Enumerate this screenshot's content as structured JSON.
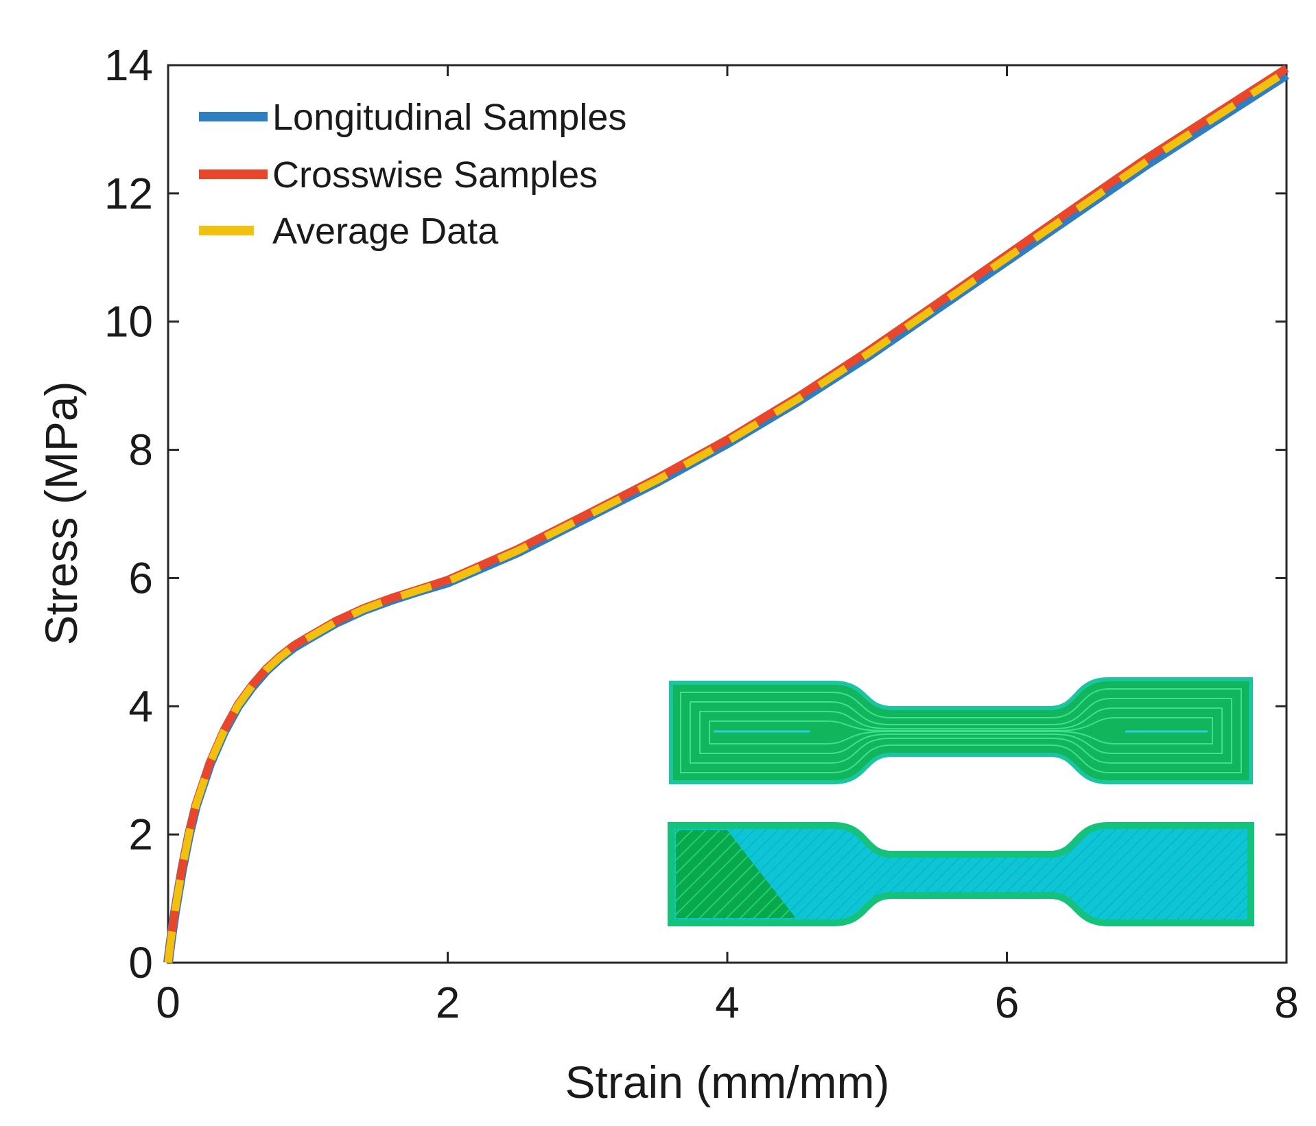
{
  "chart_data": {
    "type": "line",
    "xlabel": "Strain (mm/mm)",
    "ylabel": "Stress (MPa)",
    "xlim": [
      0,
      8
    ],
    "ylim": [
      0,
      14
    ],
    "xticks": [
      "0",
      "2",
      "4",
      "6",
      "8"
    ],
    "yticks": [
      "0",
      "2",
      "4",
      "6",
      "8",
      "10",
      "12",
      "14"
    ],
    "legend_position": "top-left",
    "grid": false,
    "x": [
      0,
      0.02,
      0.05,
      0.1,
      0.15,
      0.2,
      0.3,
      0.4,
      0.5,
      0.6,
      0.7,
      0.8,
      0.9,
      1.0,
      1.2,
      1.4,
      1.6,
      1.8,
      2.0,
      2.5,
      3.0,
      3.5,
      4.0,
      4.5,
      5.0,
      5.5,
      6.0,
      6.5,
      7.0,
      7.5,
      8.0
    ],
    "series": [
      {
        "name": "Longitudinal Samples",
        "color": "#2e7ec1",
        "dash": "solid",
        "values": [
          0,
          0.35,
          0.8,
          1.45,
          2.0,
          2.45,
          3.1,
          3.6,
          4.0,
          4.3,
          4.55,
          4.75,
          4.92,
          5.05,
          5.3,
          5.5,
          5.66,
          5.8,
          5.93,
          6.4,
          6.95,
          7.5,
          8.1,
          8.75,
          9.45,
          10.2,
          10.95,
          11.7,
          12.45,
          13.15,
          13.85
        ]
      },
      {
        "name": "Crosswise Samples",
        "color": "#e8472b",
        "dash": "solid",
        "values": [
          0,
          0.37,
          0.83,
          1.48,
          2.03,
          2.48,
          3.13,
          3.63,
          4.03,
          4.33,
          4.58,
          4.78,
          4.95,
          5.08,
          5.33,
          5.53,
          5.69,
          5.83,
          5.97,
          6.45,
          7.0,
          7.56,
          8.16,
          8.82,
          9.53,
          10.28,
          11.04,
          11.8,
          12.55,
          13.25,
          13.95
        ]
      },
      {
        "name": "Average Data",
        "color": "#f2c110",
        "dash": "dashed",
        "values": [
          0,
          0.36,
          0.815,
          1.465,
          2.015,
          2.465,
          3.115,
          3.615,
          4.015,
          4.315,
          4.565,
          4.765,
          4.935,
          5.065,
          5.315,
          5.515,
          5.675,
          5.815,
          5.95,
          6.425,
          6.975,
          7.53,
          8.13,
          8.785,
          9.49,
          10.24,
          10.995,
          11.75,
          12.5,
          13.2,
          13.9
        ]
      }
    ]
  },
  "inset": {
    "description_icon": "dogbone-specimens-icon",
    "colors": {
      "outline_green": "#16c46a",
      "line_green": "#0aa85a",
      "infill_cyan": "#0cc4d4",
      "dark_green": "#07a04a"
    }
  }
}
